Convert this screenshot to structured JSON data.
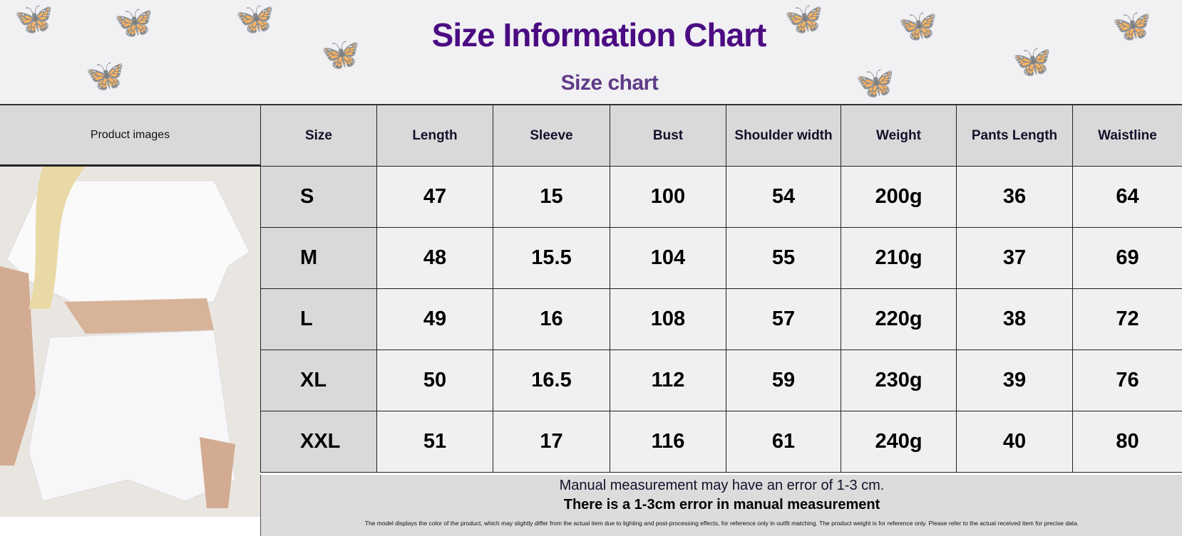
{
  "header": {
    "title": "Size Information Chart",
    "subtitle": "Size chart"
  },
  "photo_column": {
    "header": "Product images"
  },
  "table": {
    "columns": [
      "Size",
      "Length",
      "Sleeve",
      "Bust",
      "Shoulder width",
      "Weight",
      "Pants Length",
      "Waistline"
    ],
    "rows": [
      [
        "S",
        "47",
        "15",
        "100",
        "54",
        "200g",
        "36",
        "64"
      ],
      [
        "M",
        "48",
        "15.5",
        "104",
        "55",
        "210g",
        "37",
        "69"
      ],
      [
        "L",
        "49",
        "16",
        "108",
        "57",
        "220g",
        "38",
        "72"
      ],
      [
        "XL",
        "50",
        "16.5",
        "112",
        "59",
        "230g",
        "39",
        "76"
      ],
      [
        "XXL",
        "51",
        "17",
        "116",
        "61",
        "240g",
        "40",
        "80"
      ]
    ]
  },
  "footer": {
    "line1": "Manual measurement may have an error of 1-3 cm.",
    "line2": "There is a 1-3cm error in manual measurement",
    "disclaimer": "The model displays the color of the product, which may slightly differ from the actual item due to lighting and post-processing effects, for reference only in outfit matching. The product weight is for reference only. Please refer to the actual received item for precise data."
  },
  "colors": {
    "title": "#4b0b82",
    "subtitle": "#5e3b86",
    "header_cell": "#d9d9d9",
    "body_cell": "#f0f0f0"
  }
}
